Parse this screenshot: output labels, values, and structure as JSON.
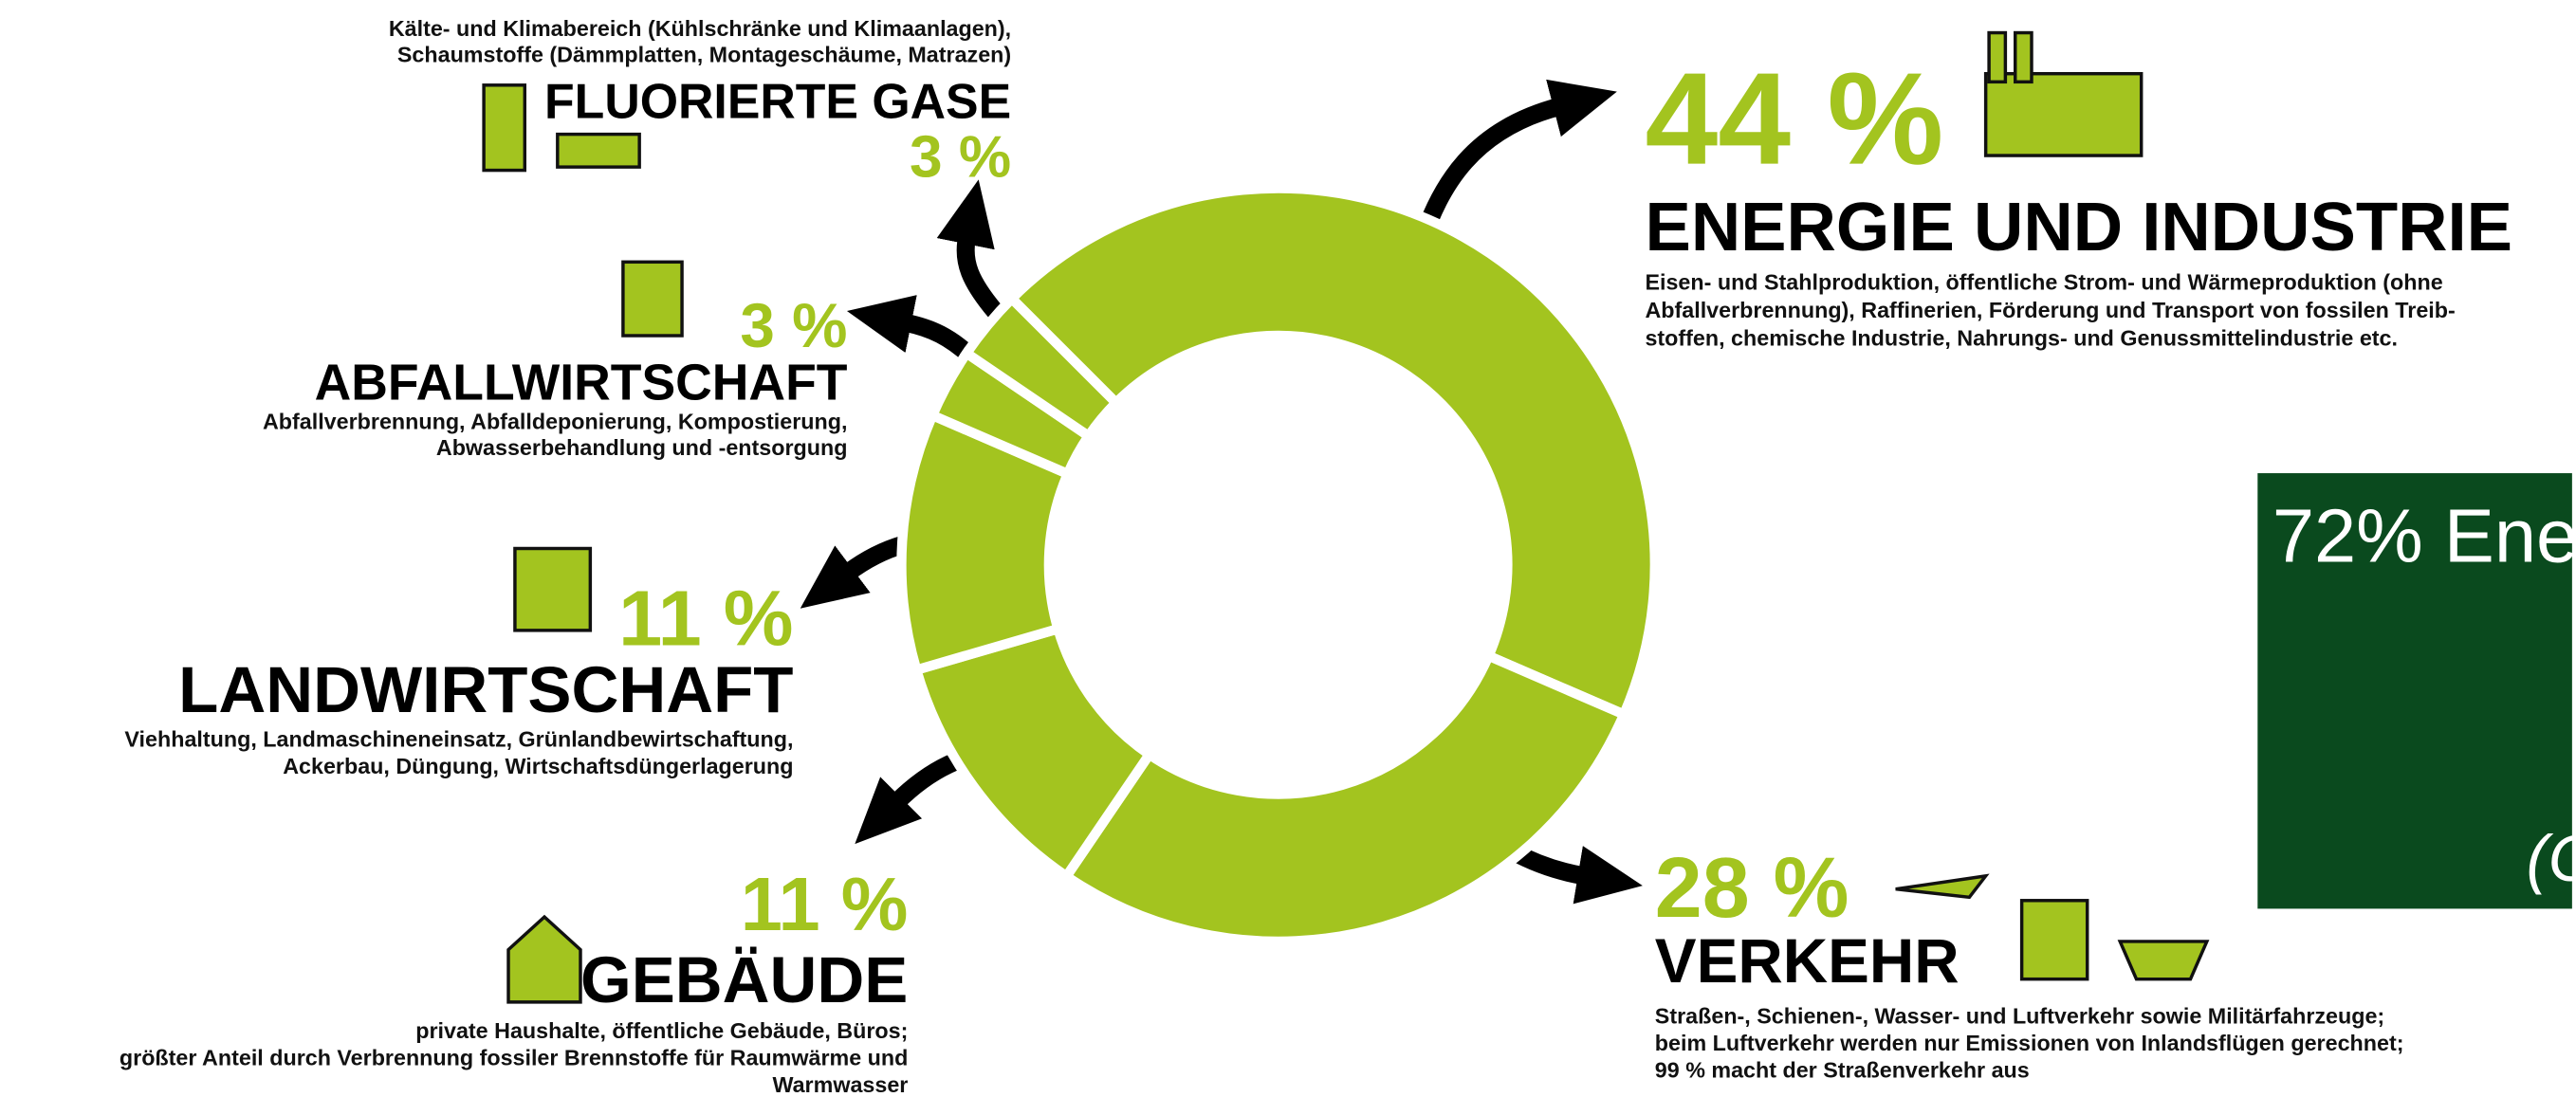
{
  "chart_data": {
    "type": "donut",
    "categories": [
      "ENERGIE UND INDUSTRIE",
      "VERKEHR",
      "GEBÄUDE",
      "LANDWIRTSCHAFT",
      "ABFALLWIRTSCHAFT",
      "FLUORIERTE GASE"
    ],
    "values": [
      44,
      28,
      11,
      11,
      3,
      3
    ],
    "value_labels": [
      "44 %",
      "28 %",
      "11 %",
      "11 %",
      "3 %",
      "3 %"
    ],
    "descriptions": [
      [
        "Eisen- und Stahlproduktion, öffentliche Strom- und Wärmeproduktion (ohne",
        "Abfallverbrennung), Raffinerien, Förderung und Transport von fossilen Treib-",
        "stoffen, chemische Industrie, Nahrungs- und Genussmittelindustrie etc."
      ],
      [
        "Straßen-, Schienen-, Wasser- und Luftverkehr sowie Militärfahrzeuge;",
        "beim Luftverkehr werden nur Emissionen von Inlandsflügen gerechnet;",
        "99 % macht der Straßenverkehr aus"
      ],
      [
        "private Haushalte, öffentliche Gebäude, Büros;",
        "größter Anteil durch Verbrennung fossiler Brennstoffe für Raumwärme und",
        "Warmwasser"
      ],
      [
        "Viehhaltung, Landmaschineneinsatz, Grünlandbewirtschaftung,",
        "Ackerbau, Düngung, Wirtschaftsdüngerlagerung"
      ],
      [
        "Abfallverbrennung, Abfalldeponierung, Kompostierung,",
        "Abwasserbehandlung und -entsorgung"
      ],
      [
        "Kälte- und Klimabereich (Kühlschränke und Klimaanlagen),",
        "Schaumstoffe (Dämmplatten, Montageschäume, Matrazen)"
      ]
    ],
    "color": "#a3c41f"
  },
  "sidebox": {
    "title": "72% Ene",
    "note": "(C"
  }
}
